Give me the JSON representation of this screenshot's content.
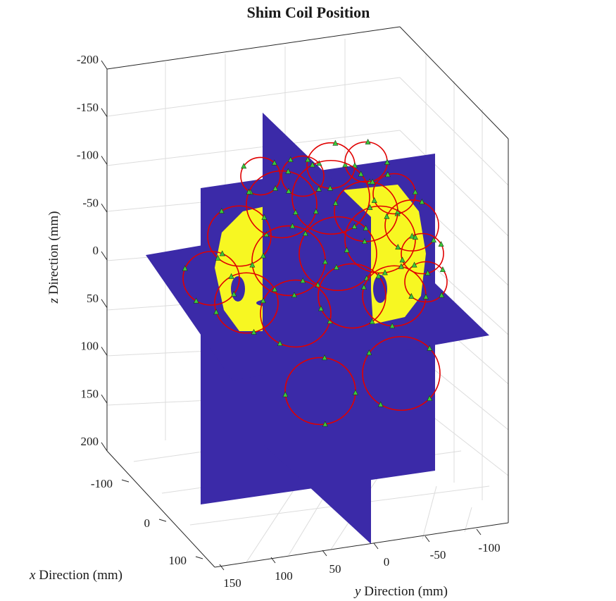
{
  "chart_data": {
    "type": "3d-slice-with-coils",
    "title": "Shim Coil Position",
    "xlabel_var": "x",
    "xlabel_rest": " Direction (mm)",
    "ylabel_var": "y",
    "ylabel_rest": " Direction (mm)",
    "zlabel_var": "z",
    "zlabel_rest": " Direction (mm)",
    "x_ticks": [
      "-100",
      "0",
      "100"
    ],
    "y_ticks": [
      "150",
      "100",
      "50",
      "0",
      "-50",
      "-100"
    ],
    "z_ticks": [
      "-200",
      "-150",
      "-100",
      "-50",
      "0",
      "50",
      "100",
      "150",
      "200"
    ],
    "xlim": [
      -150,
      150
    ],
    "ylim": [
      -130,
      180
    ],
    "zlim": [
      -200,
      200
    ],
    "z_reversed": true,
    "grid": true,
    "colors": {
      "slice_background": "#3b2aa8",
      "head_mask": "#f7f722",
      "coil": "#e00000",
      "marker": "#3cc83c"
    },
    "slices": [
      "axial",
      "coronal",
      "sagittal"
    ],
    "coils": [
      {
        "cx": 470,
        "cy": 235,
        "r": 34
      },
      {
        "cx": 430,
        "cy": 250,
        "r": 30
      },
      {
        "cx": 520,
        "cy": 230,
        "r": 30
      },
      {
        "cx": 370,
        "cy": 250,
        "r": 28
      },
      {
        "cx": 560,
        "cy": 275,
        "r": 30
      },
      {
        "cx": 585,
        "cy": 320,
        "r": 38
      },
      {
        "cx": 600,
        "cy": 360,
        "r": 30
      },
      {
        "cx": 400,
        "cy": 290,
        "r": 50
      },
      {
        "cx": 470,
        "cy": 280,
        "r": 55
      },
      {
        "cx": 520,
        "cy": 300,
        "r": 45
      },
      {
        "cx": 340,
        "cy": 335,
        "r": 45
      },
      {
        "cx": 410,
        "cy": 370,
        "r": 52
      },
      {
        "cx": 480,
        "cy": 360,
        "r": 55
      },
      {
        "cx": 540,
        "cy": 340,
        "r": 50
      },
      {
        "cx": 300,
        "cy": 395,
        "r": 40
      },
      {
        "cx": 350,
        "cy": 430,
        "r": 45
      },
      {
        "cx": 420,
        "cy": 445,
        "r": 50
      },
      {
        "cx": 500,
        "cy": 420,
        "r": 48
      },
      {
        "cx": 560,
        "cy": 420,
        "r": 45
      },
      {
        "cx": 605,
        "cy": 400,
        "r": 30
      },
      {
        "cx": 455,
        "cy": 555,
        "r": 50
      },
      {
        "cx": 570,
        "cy": 530,
        "r": 55
      }
    ]
  }
}
